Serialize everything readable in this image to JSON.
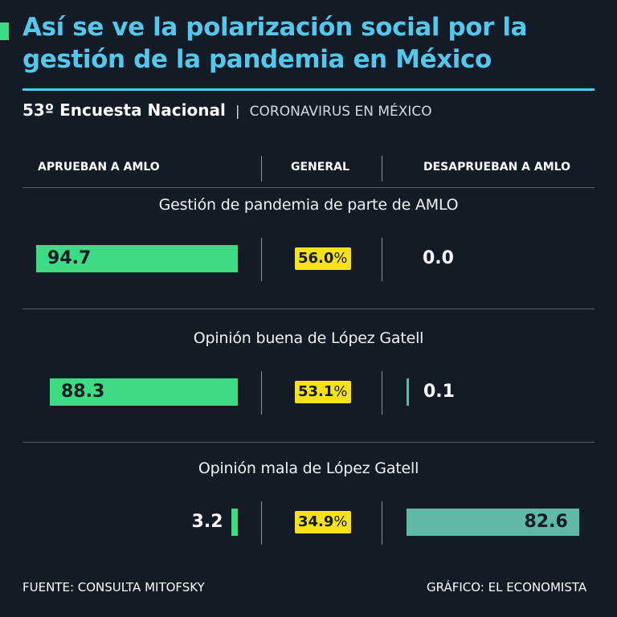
{
  "header": {
    "title": "Así se ve la polarización social por la gestión de la pandemia en México",
    "subtitle_bold": "53º Encuesta Nacional",
    "subtitle_sep": "|",
    "subtitle_light": "CORONAVIRUS EN MÉXICO"
  },
  "columns": {
    "left": "APRUEBAN A AMLO",
    "center": "GENERAL",
    "right": "DESAPRUEBAN A AMLO"
  },
  "chart_data": {
    "type": "bar",
    "categories": [
      "Gestión de pandemia de parte de AMLO",
      "Opinión buena de López Gatell",
      "Opinión mala de López Gatell"
    ],
    "series": [
      {
        "name": "APRUEBAN A AMLO",
        "values": [
          94.7,
          88.3,
          3.2
        ],
        "labels": [
          "94.7",
          "88.3",
          "3.2"
        ]
      },
      {
        "name": "GENERAL",
        "values": [
          56.0,
          53.1,
          34.9
        ],
        "labels": [
          "56.0",
          "53.1",
          "34.9"
        ]
      },
      {
        "name": "DESAPRUEBAN A AMLO",
        "values": [
          0.0,
          0.1,
          82.6
        ],
        "labels": [
          "0.0",
          "0.1",
          "82.6"
        ]
      }
    ],
    "percent_sign": "%",
    "xlim": [
      0,
      100
    ]
  },
  "colors": {
    "background": "#131b27",
    "title": "#56c7ec",
    "approve": "#3ddc84",
    "general": "#f7e21a",
    "disapprove": "#5fb9a5"
  },
  "footer": {
    "source": "FUENTE: CONSULTA MITOFSKY",
    "credit": "GRÁFICO: EL ECONOMISTA"
  }
}
